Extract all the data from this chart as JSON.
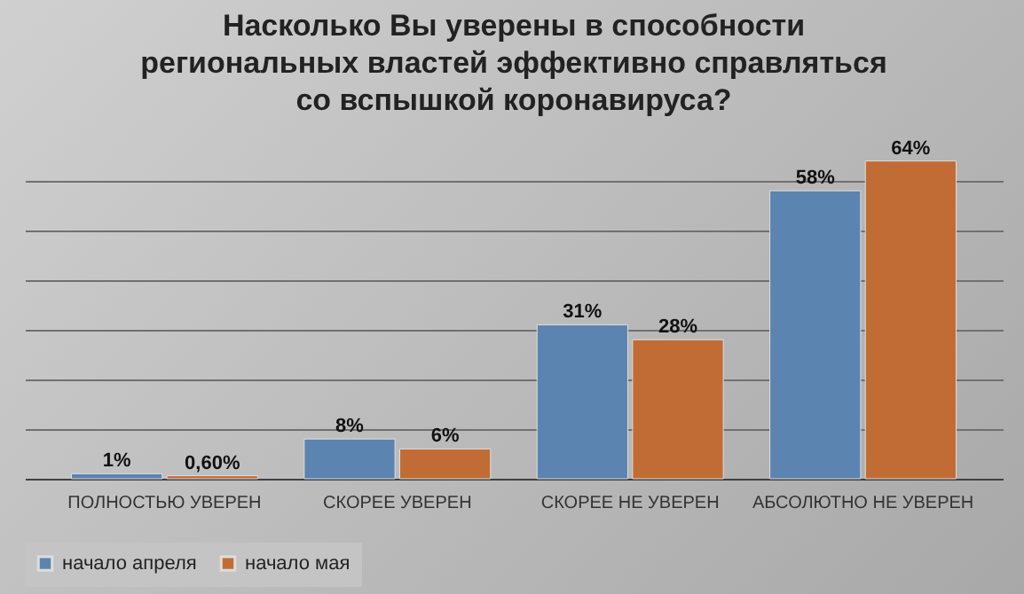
{
  "chart_data": {
    "type": "bar",
    "title": "Насколько Вы уверены в способности\nрегиональных властей эффективно справляться\nсо вспышкой коронавируса?",
    "categories": [
      "ПОЛНОСТЬЮ УВЕРЕН",
      "СКОРЕЕ УВЕРЕН",
      "СКОРЕЕ НЕ УВЕРЕН",
      "АБСОЛЮТНО НЕ УВЕРЕН"
    ],
    "series": [
      {
        "name": "начало апреля",
        "color": "#5b84b1",
        "values": [
          1,
          8,
          31,
          58
        ],
        "value_labels": [
          "1%",
          "8%",
          "31%",
          "58%"
        ]
      },
      {
        "name": "начало мая",
        "color": "#c26c35",
        "values": [
          0.6,
          6,
          28,
          64
        ],
        "value_labels": [
          "0,60%",
          "6%",
          "28%",
          "64%"
        ]
      }
    ],
    "grid": "y",
    "tick_labels": "x",
    "legend": "bottom"
  }
}
